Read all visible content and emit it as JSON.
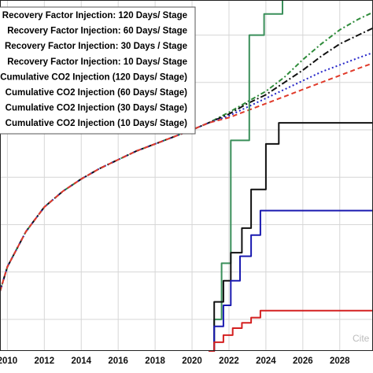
{
  "chart_data": {
    "type": "line",
    "title": "",
    "xlabel": "",
    "ylabel": "",
    "xlim": [
      2009.6,
      2029.8
    ],
    "ylim": [
      0,
      100
    ],
    "x_ticks": [
      "2010",
      "2012",
      "2014",
      "2016",
      "2018",
      "2020",
      "2022",
      "2024",
      "2026",
      "2028"
    ],
    "x_grid": [
      2010,
      2012,
      2014,
      2016,
      2018,
      2020,
      2022,
      2024,
      2026,
      2028
    ],
    "y_grid": [
      9,
      22.5,
      36,
      49.5,
      63,
      76.5,
      90
    ],
    "grid": true,
    "legend": {
      "placement": "top-left",
      "entries": [
        "Recovery Factor Injection: 120 Days/ Stage",
        "Recovery Factor Injection: 60 Days/ Stage",
        "Recovery Factor Injection: 30 Days / Stage",
        "Recovery Factor Injection: 10 Days/ Stage",
        "Cumulative CO2 Injection (120 Days/ Stage)",
        "Cumulative CO2 Injection (60 Days/ Stage)",
        "Cumulative CO2 Injection (30 Days/ Stage)",
        "Cumulative CO2 Injection (10 Days/ Stage)"
      ]
    },
    "series": [
      {
        "name": "Recovery Factor Injection: 120 Days/ Stage",
        "color": "#2e8b3a",
        "dash": "6,3,2,3",
        "width": 2,
        "points": [
          [
            2009.6,
            17
          ],
          [
            2010,
            24
          ],
          [
            2011,
            34
          ],
          [
            2012,
            41
          ],
          [
            2013,
            45.5
          ],
          [
            2014,
            49
          ],
          [
            2015,
            52
          ],
          [
            2016,
            54.5
          ],
          [
            2017,
            57
          ],
          [
            2018,
            59
          ],
          [
            2019,
            61
          ],
          [
            2020,
            63
          ],
          [
            2020.9,
            65
          ],
          [
            2022,
            68
          ],
          [
            2023,
            71
          ],
          [
            2024,
            74
          ],
          [
            2025,
            78
          ],
          [
            2026,
            83
          ],
          [
            2027,
            87.5
          ],
          [
            2028,
            91.5
          ],
          [
            2029,
            94.5
          ],
          [
            2029.8,
            96.5
          ]
        ]
      },
      {
        "name": "Recovery Factor Injection: 60 Days/ Stage",
        "color": "#111111",
        "dash": "8,3,2,3",
        "width": 2,
        "points": [
          [
            2009.6,
            17
          ],
          [
            2010,
            24
          ],
          [
            2011,
            34
          ],
          [
            2012,
            41
          ],
          [
            2013,
            45.5
          ],
          [
            2014,
            49
          ],
          [
            2015,
            52
          ],
          [
            2016,
            54.5
          ],
          [
            2017,
            57
          ],
          [
            2018,
            59
          ],
          [
            2019,
            61
          ],
          [
            2020,
            63
          ],
          [
            2020.9,
            65
          ],
          [
            2022,
            67.5
          ],
          [
            2023,
            70.5
          ],
          [
            2024,
            73
          ],
          [
            2025,
            76.5
          ],
          [
            2026,
            80
          ],
          [
            2027,
            84
          ],
          [
            2028,
            87.5
          ],
          [
            2029,
            90
          ],
          [
            2029.8,
            92
          ]
        ]
      },
      {
        "name": "Recovery Factor Injection: 30 Days / Stage",
        "color": "#2424c8",
        "dash": "2,3",
        "width": 2,
        "points": [
          [
            2009.6,
            17
          ],
          [
            2010,
            24
          ],
          [
            2011,
            34
          ],
          [
            2012,
            41
          ],
          [
            2013,
            45.5
          ],
          [
            2014,
            49
          ],
          [
            2015,
            52
          ],
          [
            2016,
            54.5
          ],
          [
            2017,
            57
          ],
          [
            2018,
            59
          ],
          [
            2019,
            61
          ],
          [
            2020,
            63
          ],
          [
            2020.9,
            65
          ],
          [
            2022,
            67
          ],
          [
            2023,
            69.5
          ],
          [
            2024,
            72
          ],
          [
            2025,
            74.5
          ],
          [
            2026,
            77
          ],
          [
            2027,
            79.5
          ],
          [
            2028,
            81.5
          ],
          [
            2029,
            83.5
          ],
          [
            2029.8,
            85
          ]
        ]
      },
      {
        "name": "Recovery Factor Injection: 10 Days/ Stage",
        "color": "#e03a2a",
        "dash": "6,4",
        "width": 2,
        "points": [
          [
            2009.6,
            17
          ],
          [
            2010,
            24
          ],
          [
            2011,
            34
          ],
          [
            2012,
            41
          ],
          [
            2013,
            45.5
          ],
          [
            2014,
            49
          ],
          [
            2015,
            52
          ],
          [
            2016,
            54.5
          ],
          [
            2017,
            57
          ],
          [
            2018,
            59
          ],
          [
            2019,
            61
          ],
          [
            2020,
            63
          ],
          [
            2020.9,
            65
          ],
          [
            2022,
            66.5
          ],
          [
            2023,
            68.5
          ],
          [
            2024,
            70.5
          ],
          [
            2025,
            72.5
          ],
          [
            2026,
            74.5
          ],
          [
            2027,
            76.5
          ],
          [
            2028,
            78.5
          ],
          [
            2029,
            80.5
          ],
          [
            2029.8,
            82
          ]
        ]
      },
      {
        "name": "Cumulative CO2 Injection (120 Days/ Stage)",
        "color": "#3a8f5a",
        "dash": "",
        "width": 2,
        "points": [
          [
            2020.9,
            0
          ],
          [
            2021.2,
            0
          ],
          [
            2021.2,
            9
          ],
          [
            2021.6,
            9
          ],
          [
            2021.6,
            25
          ],
          [
            2022.1,
            25
          ],
          [
            2022.1,
            60
          ],
          [
            2023.1,
            60
          ],
          [
            2023.1,
            90
          ],
          [
            2023.9,
            90
          ],
          [
            2023.9,
            96
          ],
          [
            2024.9,
            96
          ],
          [
            2024.9,
            100
          ],
          [
            2029.8,
            100
          ]
        ]
      },
      {
        "name": "Cumulative CO2 Injection (60 Days/ Stage)",
        "color": "#111111",
        "dash": "",
        "width": 2,
        "points": [
          [
            2020.9,
            0
          ],
          [
            2021.2,
            0
          ],
          [
            2021.2,
            14
          ],
          [
            2021.7,
            14
          ],
          [
            2021.7,
            20
          ],
          [
            2022.1,
            20
          ],
          [
            2022.1,
            28
          ],
          [
            2022.7,
            28
          ],
          [
            2022.7,
            35
          ],
          [
            2023.2,
            35
          ],
          [
            2023.2,
            46
          ],
          [
            2024.0,
            46
          ],
          [
            2024.0,
            59
          ],
          [
            2024.7,
            59
          ],
          [
            2024.7,
            65
          ],
          [
            2029.8,
            65
          ]
        ]
      },
      {
        "name": "Cumulative CO2 Injection (30 Days/ Stage)",
        "color": "#1a1ab0",
        "dash": "",
        "width": 2,
        "points": [
          [
            2020.9,
            0
          ],
          [
            2021.2,
            0
          ],
          [
            2021.2,
            7
          ],
          [
            2021.7,
            7
          ],
          [
            2021.7,
            13
          ],
          [
            2022.1,
            13
          ],
          [
            2022.1,
            20
          ],
          [
            2022.6,
            20
          ],
          [
            2022.6,
            27
          ],
          [
            2023.2,
            27
          ],
          [
            2023.2,
            33
          ],
          [
            2023.7,
            33
          ],
          [
            2023.7,
            40
          ],
          [
            2029.8,
            40
          ]
        ]
      },
      {
        "name": "Cumulative CO2 Injection (10 Days/ Stage)",
        "color": "#d42020",
        "dash": "",
        "width": 2,
        "points": [
          [
            2020.9,
            0
          ],
          [
            2021.2,
            0
          ],
          [
            2021.2,
            2.5
          ],
          [
            2021.7,
            2.5
          ],
          [
            2021.7,
            4.5
          ],
          [
            2022.2,
            4.5
          ],
          [
            2022.2,
            6.5
          ],
          [
            2022.7,
            6.5
          ],
          [
            2022.7,
            8
          ],
          [
            2023.2,
            8
          ],
          [
            2023.2,
            9.5
          ],
          [
            2023.7,
            9.5
          ],
          [
            2023.7,
            11.5
          ],
          [
            2029.8,
            11.5
          ]
        ]
      }
    ]
  },
  "watermark": "Cite"
}
